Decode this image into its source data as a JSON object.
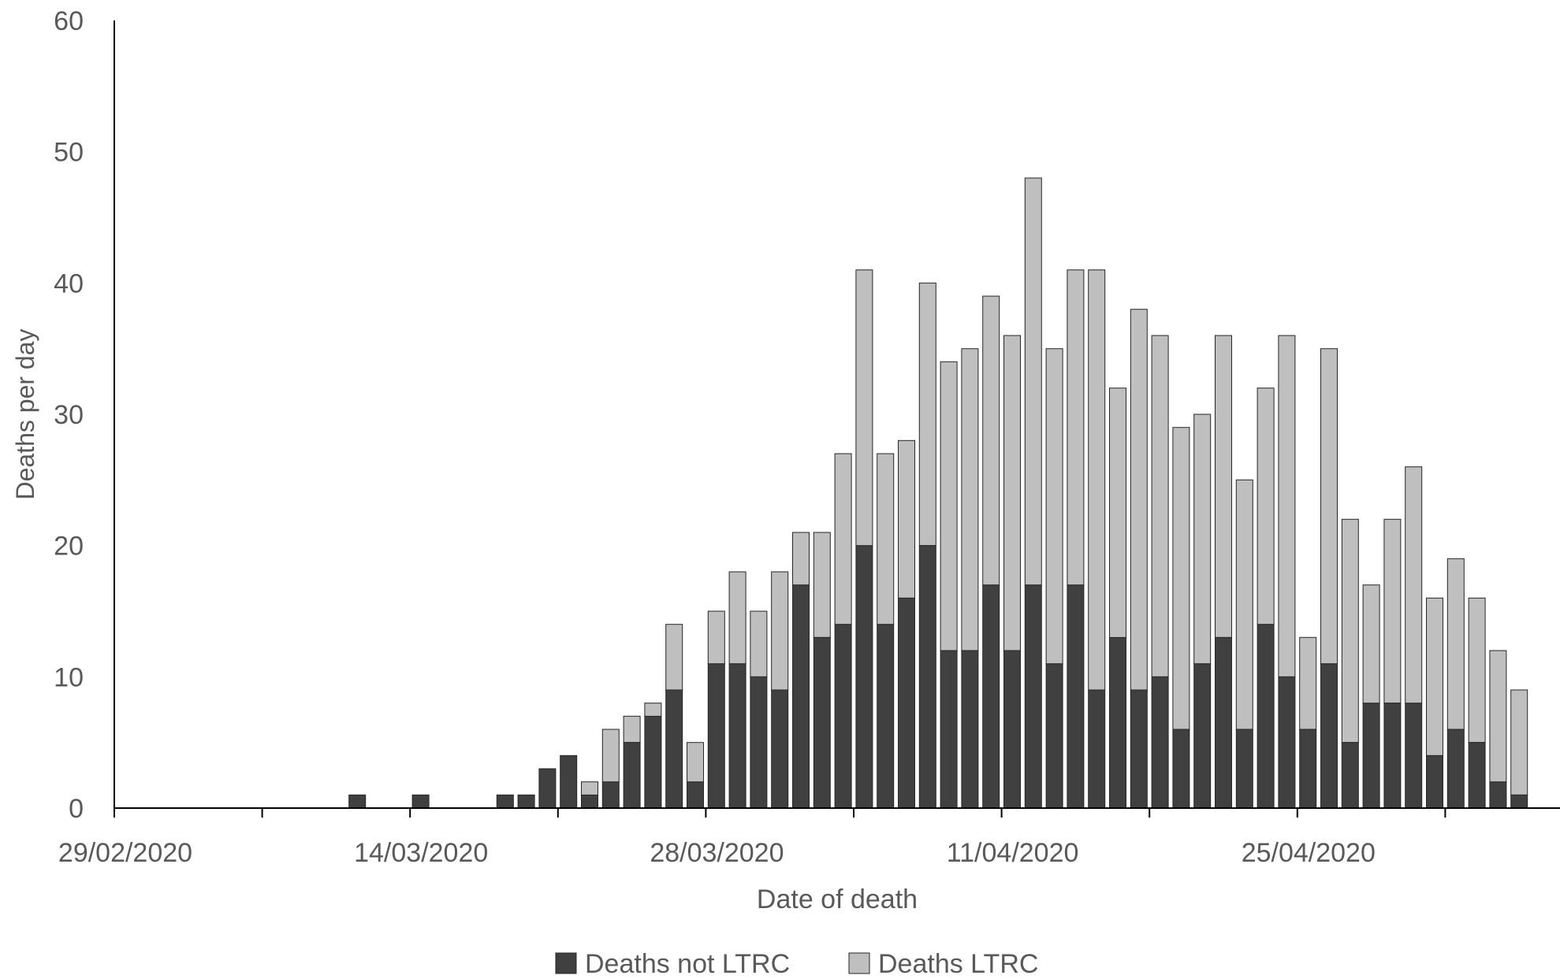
{
  "chart_data": {
    "type": "bar",
    "stacked": true,
    "x_axis_type": "date",
    "xlabel": "Date of death",
    "ylabel": "Deaths per day",
    "ylim": [
      0,
      60
    ],
    "yticks": [
      0,
      10,
      20,
      30,
      40,
      50,
      60
    ],
    "xlim": [
      "29/02/2020",
      "10/05/2020"
    ],
    "xtick_labels": [
      "29/02/2020",
      "14/03/2020",
      "28/03/2020",
      "11/04/2020",
      "25/04/2020"
    ],
    "minor_tick_dates": [
      "07/03/2020",
      "21/03/2020",
      "04/04/2020",
      "18/04/2020",
      "02/05/2020"
    ],
    "legend_position": "bottom",
    "grid": false,
    "colors": {
      "not_ltrc": "#404040",
      "ltrc": "#bfbfbf",
      "bar_edge": "#262626",
      "axis": "#000000",
      "text": "#595959"
    },
    "dates": [
      "11/03/2020",
      "14/03/2020",
      "18/03/2020",
      "19/03/2020",
      "20/03/2020",
      "21/03/2020",
      "22/03/2020",
      "23/03/2020",
      "24/03/2020",
      "25/03/2020",
      "26/03/2020",
      "27/03/2020",
      "28/03/2020",
      "29/03/2020",
      "30/03/2020",
      "31/03/2020",
      "01/04/2020",
      "02/04/2020",
      "03/04/2020",
      "04/04/2020",
      "05/04/2020",
      "06/04/2020",
      "07/04/2020",
      "08/04/2020",
      "09/04/2020",
      "10/04/2020",
      "11/04/2020",
      "12/04/2020",
      "13/04/2020",
      "14/04/2020",
      "15/04/2020",
      "16/04/2020",
      "17/04/2020",
      "18/04/2020",
      "19/04/2020",
      "20/04/2020",
      "21/04/2020",
      "22/04/2020",
      "23/04/2020",
      "24/04/2020",
      "25/04/2020",
      "26/04/2020",
      "27/04/2020",
      "28/04/2020",
      "29/04/2020",
      "30/04/2020",
      "01/05/2020",
      "02/05/2020",
      "03/05/2020",
      "04/05/2020",
      "05/05/2020",
      "06/05/2020",
      "07/05/2020"
    ],
    "series": [
      {
        "name": "Deaths not LTRC",
        "values": [
          1,
          1,
          1,
          1,
          3,
          4,
          1,
          2,
          5,
          7,
          9,
          2,
          11,
          11,
          10,
          9,
          17,
          13,
          14,
          20,
          14,
          16,
          20,
          12,
          12,
          17,
          12,
          17,
          11,
          17,
          9,
          13,
          9,
          10,
          6,
          11,
          13,
          6,
          14,
          10,
          6,
          11,
          5,
          8,
          8,
          8,
          4,
          6,
          5,
          2,
          1,
          0,
          0
        ]
      },
      {
        "name": "Deaths LTRC",
        "values": [
          0,
          0,
          0,
          0,
          0,
          0,
          1,
          4,
          2,
          1,
          5,
          3,
          4,
          7,
          5,
          9,
          4,
          8,
          13,
          21,
          13,
          12,
          20,
          22,
          23,
          22,
          24,
          31,
          24,
          24,
          32,
          19,
          29,
          26,
          23,
          19,
          23,
          19,
          18,
          26,
          7,
          24,
          17,
          9,
          14,
          18,
          12,
          13,
          11,
          10,
          8,
          0,
          0
        ]
      }
    ]
  }
}
